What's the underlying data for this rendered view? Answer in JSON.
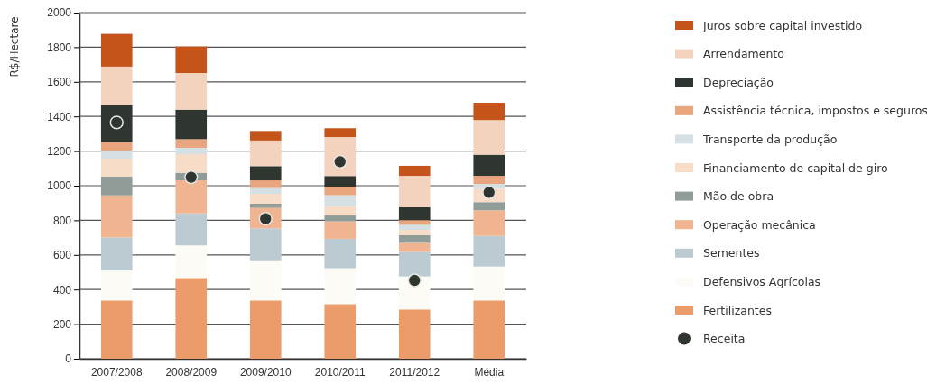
{
  "chart_data": {
    "type": "bar",
    "stacked": true,
    "ylabel": "R$/Hectare",
    "categories": [
      "2007/2008",
      "2008/2009",
      "2009/2010",
      "2010/2011",
      "2011/2012",
      "Média"
    ],
    "ylim": [
      0,
      2000
    ],
    "yticks": [
      0,
      200,
      400,
      600,
      800,
      1000,
      1200,
      1400,
      1600,
      1800,
      2000
    ],
    "grid": "y",
    "legend": "right",
    "series": [
      {
        "name": "Fertilizantes",
        "color": "#ec9c6a",
        "values": [
          337,
          467,
          337,
          316,
          285,
          337
        ]
      },
      {
        "name": "Defensivos Agrícolas",
        "color": "#fdfbf5",
        "values": [
          173,
          188,
          232,
          207,
          191,
          196
        ]
      },
      {
        "name": "Sementes",
        "color": "#bccbd2",
        "values": [
          191,
          185,
          185,
          170,
          142,
          177
        ]
      },
      {
        "name": "Operação mecânica",
        "color": "#f0b590",
        "values": [
          243,
          191,
          118,
          101,
          52,
          148
        ]
      },
      {
        "name": "Mão de obra",
        "color": "#8f9c98",
        "values": [
          108,
          44,
          24,
          34,
          44,
          47
        ]
      },
      {
        "name": "Financiamento de capital de giro",
        "color": "#f7dcc8",
        "values": [
          104,
          107,
          57,
          54,
          31,
          78
        ]
      },
      {
        "name": "Transporte da produção",
        "color": "#d4e0e3",
        "values": [
          45,
          37,
          33,
          63,
          29,
          27
        ]
      },
      {
        "name": "Assistência técnica, impostos e seguros",
        "color": "#e9a57e",
        "values": [
          51,
          50,
          45,
          48,
          27,
          47
        ]
      },
      {
        "name": "Depreciação",
        "color": "#2f3630",
        "values": [
          213,
          170,
          82,
          63,
          74,
          122
        ]
      },
      {
        "name": "Arrendamento",
        "color": "#f3d3bd",
        "values": [
          223,
          212,
          148,
          225,
          182,
          200
        ]
      },
      {
        "name": "Juros sobre capital investido",
        "color": "#c4541a",
        "values": [
          189,
          153,
          55,
          51,
          58,
          100
        ]
      },
      {
        "name": "Receita",
        "type": "scatter",
        "marker": "circle",
        "color": "#2f3630",
        "x": [
          "2007/2008",
          "2008/2009",
          "2009/2010",
          "2010/2011",
          "2011/2012",
          "Média"
        ],
        "values": [
          1365,
          1049,
          809,
          1139,
          453,
          962
        ]
      }
    ]
  }
}
